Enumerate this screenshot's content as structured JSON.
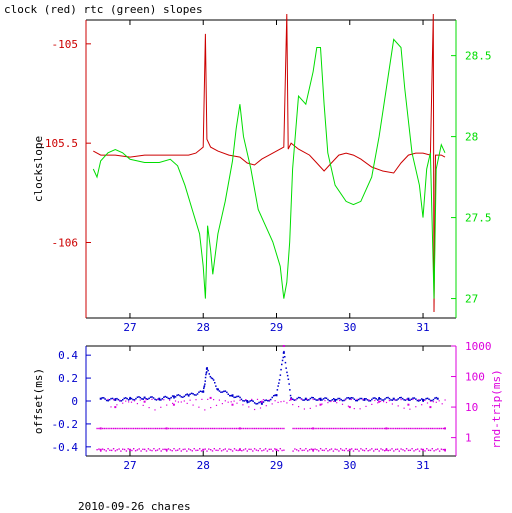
{
  "page": {
    "title": "clock (red) rtc (green) slopes",
    "footer": "2010-09-26 chares"
  },
  "colors": {
    "red": "#cc0000",
    "green": "#00dd00",
    "blue": "#0000cc",
    "magenta": "#dd00dd",
    "frame": "#000000"
  },
  "chart_data": [
    {
      "type": "line",
      "title": "clock (red) rtc (green) slopes",
      "xlabel": "",
      "ylabel": "clockslope",
      "ylabel_right": "",
      "xlim": [
        26.4,
        31.45
      ],
      "ylim": [
        -106.38,
        -104.88
      ],
      "ylim_right": [
        26.88,
        28.72
      ],
      "x_ticks": [
        27,
        28,
        29,
        30,
        31
      ],
      "x_tick_labels": [
        "27",
        "28",
        "29",
        "30",
        "31"
      ],
      "y_ticks": [
        -105,
        -105.5,
        -106
      ],
      "y_tick_labels": [
        "-105",
        "-105.5",
        "-106"
      ],
      "y_ticks_right": [
        28.5,
        28,
        27.5,
        27
      ],
      "y_tick_labels_right": [
        "28.5",
        "28",
        "27.5",
        "27"
      ],
      "grid": false,
      "series": [
        {
          "axis": "left",
          "color": "#cc0000",
          "points": [
            [
              26.5,
              -105.54
            ],
            [
              26.6,
              -105.56
            ],
            [
              26.8,
              -105.56
            ],
            [
              27.0,
              -105.57
            ],
            [
              27.2,
              -105.56
            ],
            [
              27.4,
              -105.56
            ],
            [
              27.6,
              -105.56
            ],
            [
              27.8,
              -105.56
            ],
            [
              27.9,
              -105.55
            ],
            [
              28.0,
              -105.52
            ],
            [
              28.03,
              -104.95
            ],
            [
              28.05,
              -105.48
            ],
            [
              28.1,
              -105.52
            ],
            [
              28.2,
              -105.54
            ],
            [
              28.35,
              -105.56
            ],
            [
              28.5,
              -105.57
            ],
            [
              28.6,
              -105.6
            ],
            [
              28.7,
              -105.61
            ],
            [
              28.8,
              -105.58
            ],
            [
              28.9,
              -105.56
            ],
            [
              29.0,
              -105.54
            ],
            [
              29.1,
              -105.52
            ],
            [
              29.14,
              -104.85
            ],
            [
              29.16,
              -105.53
            ],
            [
              29.2,
              -105.5
            ],
            [
              29.3,
              -105.53
            ],
            [
              29.45,
              -105.56
            ],
            [
              29.55,
              -105.6
            ],
            [
              29.65,
              -105.64
            ],
            [
              29.75,
              -105.6
            ],
            [
              29.85,
              -105.56
            ],
            [
              29.95,
              -105.55
            ],
            [
              30.05,
              -105.56
            ],
            [
              30.15,
              -105.58
            ],
            [
              30.3,
              -105.62
            ],
            [
              30.45,
              -105.64
            ],
            [
              30.6,
              -105.65
            ],
            [
              30.7,
              -105.6
            ],
            [
              30.8,
              -105.56
            ],
            [
              30.9,
              -105.55
            ],
            [
              31.0,
              -105.55
            ],
            [
              31.1,
              -105.56
            ],
            [
              31.14,
              -104.85
            ],
            [
              31.15,
              -106.35
            ],
            [
              31.17,
              -105.56
            ],
            [
              31.25,
              -105.56
            ],
            [
              31.3,
              -105.57
            ]
          ]
        },
        {
          "axis": "right",
          "color": "#00dd00",
          "points": [
            [
              26.5,
              27.8
            ],
            [
              26.55,
              27.75
            ],
            [
              26.6,
              27.85
            ],
            [
              26.7,
              27.9
            ],
            [
              26.8,
              27.92
            ],
            [
              26.9,
              27.9
            ],
            [
              27.0,
              27.86
            ],
            [
              27.2,
              27.84
            ],
            [
              27.4,
              27.84
            ],
            [
              27.55,
              27.86
            ],
            [
              27.65,
              27.82
            ],
            [
              27.75,
              27.7
            ],
            [
              27.85,
              27.55
            ],
            [
              27.95,
              27.4
            ],
            [
              28.0,
              27.2
            ],
            [
              28.03,
              27.0
            ],
            [
              28.06,
              27.45
            ],
            [
              28.1,
              27.3
            ],
            [
              28.13,
              27.15
            ],
            [
              28.2,
              27.4
            ],
            [
              28.3,
              27.6
            ],
            [
              28.4,
              27.85
            ],
            [
              28.45,
              28.05
            ],
            [
              28.5,
              28.2
            ],
            [
              28.55,
              28.0
            ],
            [
              28.65,
              27.8
            ],
            [
              28.75,
              27.55
            ],
            [
              28.85,
              27.45
            ],
            [
              28.95,
              27.35
            ],
            [
              29.05,
              27.2
            ],
            [
              29.1,
              27.0
            ],
            [
              29.14,
              27.1
            ],
            [
              29.18,
              27.35
            ],
            [
              29.22,
              27.8
            ],
            [
              29.3,
              28.25
            ],
            [
              29.4,
              28.2
            ],
            [
              29.5,
              28.4
            ],
            [
              29.55,
              28.55
            ],
            [
              29.6,
              28.55
            ],
            [
              29.65,
              28.2
            ],
            [
              29.7,
              27.9
            ],
            [
              29.8,
              27.7
            ],
            [
              29.95,
              27.6
            ],
            [
              30.05,
              27.58
            ],
            [
              30.15,
              27.6
            ],
            [
              30.3,
              27.75
            ],
            [
              30.4,
              28.0
            ],
            [
              30.5,
              28.3
            ],
            [
              30.6,
              28.6
            ],
            [
              30.7,
              28.55
            ],
            [
              30.75,
              28.3
            ],
            [
              30.85,
              27.9
            ],
            [
              30.95,
              27.7
            ],
            [
              31.0,
              27.5
            ],
            [
              31.05,
              27.8
            ],
            [
              31.1,
              27.9
            ],
            [
              31.15,
              27.0
            ],
            [
              31.18,
              27.8
            ],
            [
              31.25,
              27.95
            ],
            [
              31.3,
              27.9
            ]
          ]
        }
      ]
    },
    {
      "type": "scatter",
      "title": "",
      "xlabel": "",
      "ylabel": "offset(ms)",
      "ylabel_right": "rnd-trip(ms)",
      "xlim": [
        26.4,
        31.45
      ],
      "ylim": [
        -0.48,
        0.48
      ],
      "ylim_right_log": [
        0.25,
        1000
      ],
      "x_ticks": [
        27,
        28,
        29,
        30,
        31
      ],
      "x_tick_labels": [
        "27",
        "28",
        "29",
        "30",
        "31"
      ],
      "y_ticks": [
        0.4,
        0.2,
        0,
        -0.2,
        -0.4
      ],
      "y_tick_labels": [
        "0.4",
        "0.2",
        "0",
        "-0.2",
        "-0.4"
      ],
      "y_ticks_right": [
        1000,
        100,
        10,
        1
      ],
      "y_tick_labels_right": [
        "1000",
        "100",
        "10",
        "1"
      ],
      "grid": false,
      "series": [
        {
          "axis": "left",
          "color": "#0000cc",
          "points": [
            [
              26.6,
              0.02
            ],
            [
              26.8,
              0.01
            ],
            [
              27.0,
              0.02
            ],
            [
              27.2,
              0.03
            ],
            [
              27.4,
              0.02
            ],
            [
              27.6,
              0.04
            ],
            [
              27.8,
              0.05
            ],
            [
              28.0,
              0.08
            ],
            [
              28.05,
              0.28
            ],
            [
              28.2,
              0.1
            ],
            [
              28.4,
              0.05
            ],
            [
              28.6,
              0.0
            ],
            [
              28.8,
              -0.02
            ],
            [
              29.0,
              0.05
            ],
            [
              29.1,
              0.42
            ],
            [
              29.2,
              0.02
            ],
            [
              29.4,
              0.02
            ],
            [
              29.6,
              0.02
            ],
            [
              29.8,
              0.01
            ],
            [
              30.0,
              0.02
            ],
            [
              30.2,
              0.01
            ],
            [
              30.4,
              0.02
            ],
            [
              30.6,
              0.02
            ],
            [
              30.8,
              0.02
            ],
            [
              31.0,
              0.01
            ],
            [
              31.2,
              0.02
            ]
          ]
        },
        {
          "axis": "right",
          "color": "#dd00dd",
          "points": [
            [
              26.6,
              0.4
            ],
            [
              27.0,
              0.4
            ],
            [
              27.5,
              0.4
            ],
            [
              28.0,
              0.4
            ],
            [
              28.5,
              0.4
            ],
            [
              29.0,
              0.4
            ],
            [
              29.5,
              0.4
            ],
            [
              30.0,
              0.4
            ],
            [
              30.5,
              0.4
            ],
            [
              31.0,
              0.4
            ],
            [
              31.3,
              0.4
            ],
            [
              26.6,
              2
            ],
            [
              27.5,
              2
            ],
            [
              28.5,
              2
            ],
            [
              29.5,
              2
            ],
            [
              30.5,
              2
            ],
            [
              31.3,
              2
            ],
            [
              26.8,
              10
            ],
            [
              27.2,
              15
            ],
            [
              27.6,
              12
            ],
            [
              28.1,
              20
            ],
            [
              28.4,
              12
            ],
            [
              28.8,
              15
            ],
            [
              29.2,
              18
            ],
            [
              29.6,
              12
            ],
            [
              30.0,
              10
            ],
            [
              30.4,
              15
            ],
            [
              30.8,
              12
            ],
            [
              31.1,
              10
            ],
            [
              29.1,
              1000
            ]
          ]
        }
      ]
    }
  ]
}
